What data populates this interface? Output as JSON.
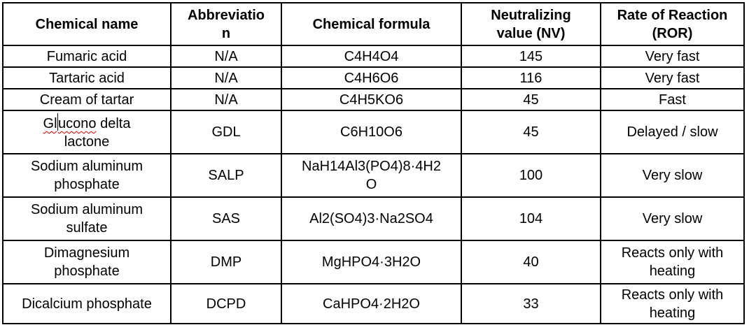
{
  "table": {
    "header": {
      "chemical_name": [
        "Chemical name"
      ],
      "abbreviation": [
        "Abbreviatio",
        "n"
      ],
      "formula": [
        "Chemical formula"
      ],
      "nv": [
        "Neutralizing",
        "value (NV)"
      ],
      "ror": [
        "Rate of Reaction",
        "(ROR)"
      ]
    },
    "rows": [
      {
        "name": [
          "Fumaric acid"
        ],
        "abbr": [
          "N/A"
        ],
        "formula": [
          "C4H4O4"
        ],
        "nv": [
          "145"
        ],
        "ror": [
          "Very fast"
        ]
      },
      {
        "name": [
          "Tartaric acid"
        ],
        "abbr": [
          "N/A"
        ],
        "formula": [
          "C4H6O6"
        ],
        "nv": [
          "116"
        ],
        "ror": [
          "Very fast"
        ]
      },
      {
        "name": [
          "Cream of tartar"
        ],
        "abbr": [
          "N/A"
        ],
        "formula": [
          "C4H5KO6"
        ],
        "nv": [
          "45"
        ],
        "ror": [
          "Fast"
        ]
      },
      {
        "name": [
          "Glucono delta",
          "lactone"
        ],
        "abbr": [
          "GDL"
        ],
        "formula": [
          "C6H10O6"
        ],
        "nv": [
          "45"
        ],
        "ror": [
          "Delayed / slow"
        ]
      },
      {
        "name": [
          "Sodium aluminum",
          "phosphate"
        ],
        "abbr": [
          "SALP"
        ],
        "formula": [
          "NaH14Al3(PO4)8·4H2",
          "O"
        ],
        "nv": [
          "100"
        ],
        "ror": [
          "Very slow"
        ]
      },
      {
        "name": [
          "Sodium aluminum",
          "sulfate"
        ],
        "abbr": [
          "SAS"
        ],
        "formula": [
          "Al2(SO4)3·Na2SO4"
        ],
        "nv": [
          "104"
        ],
        "ror": [
          "Very slow"
        ]
      },
      {
        "name": [
          "Dimagnesium",
          "phosphate"
        ],
        "abbr": [
          "DMP"
        ],
        "formula": [
          "MgHPO4·3H2O"
        ],
        "nv": [
          "40"
        ],
        "ror": [
          "Reacts only with",
          "heating"
        ]
      },
      {
        "name": [
          "Dicalcium phosphate"
        ],
        "abbr": [
          "DCPD"
        ],
        "formula": [
          "CaHPO4·2H2O"
        ],
        "nv": [
          "33"
        ],
        "ror": [
          "Reacts only with",
          "heating"
        ]
      }
    ]
  },
  "editor": {
    "word_before_cursor": "Gl",
    "word_after_cursor": "ucono",
    "rest_of_first_line": " delta",
    "second_line": "lactone",
    "misspelled_word": "Glucono",
    "spellcheck_underline_color": "#e00000",
    "text_color": "#000000",
    "border_color": "#000000",
    "background_color": "#ffffff"
  }
}
